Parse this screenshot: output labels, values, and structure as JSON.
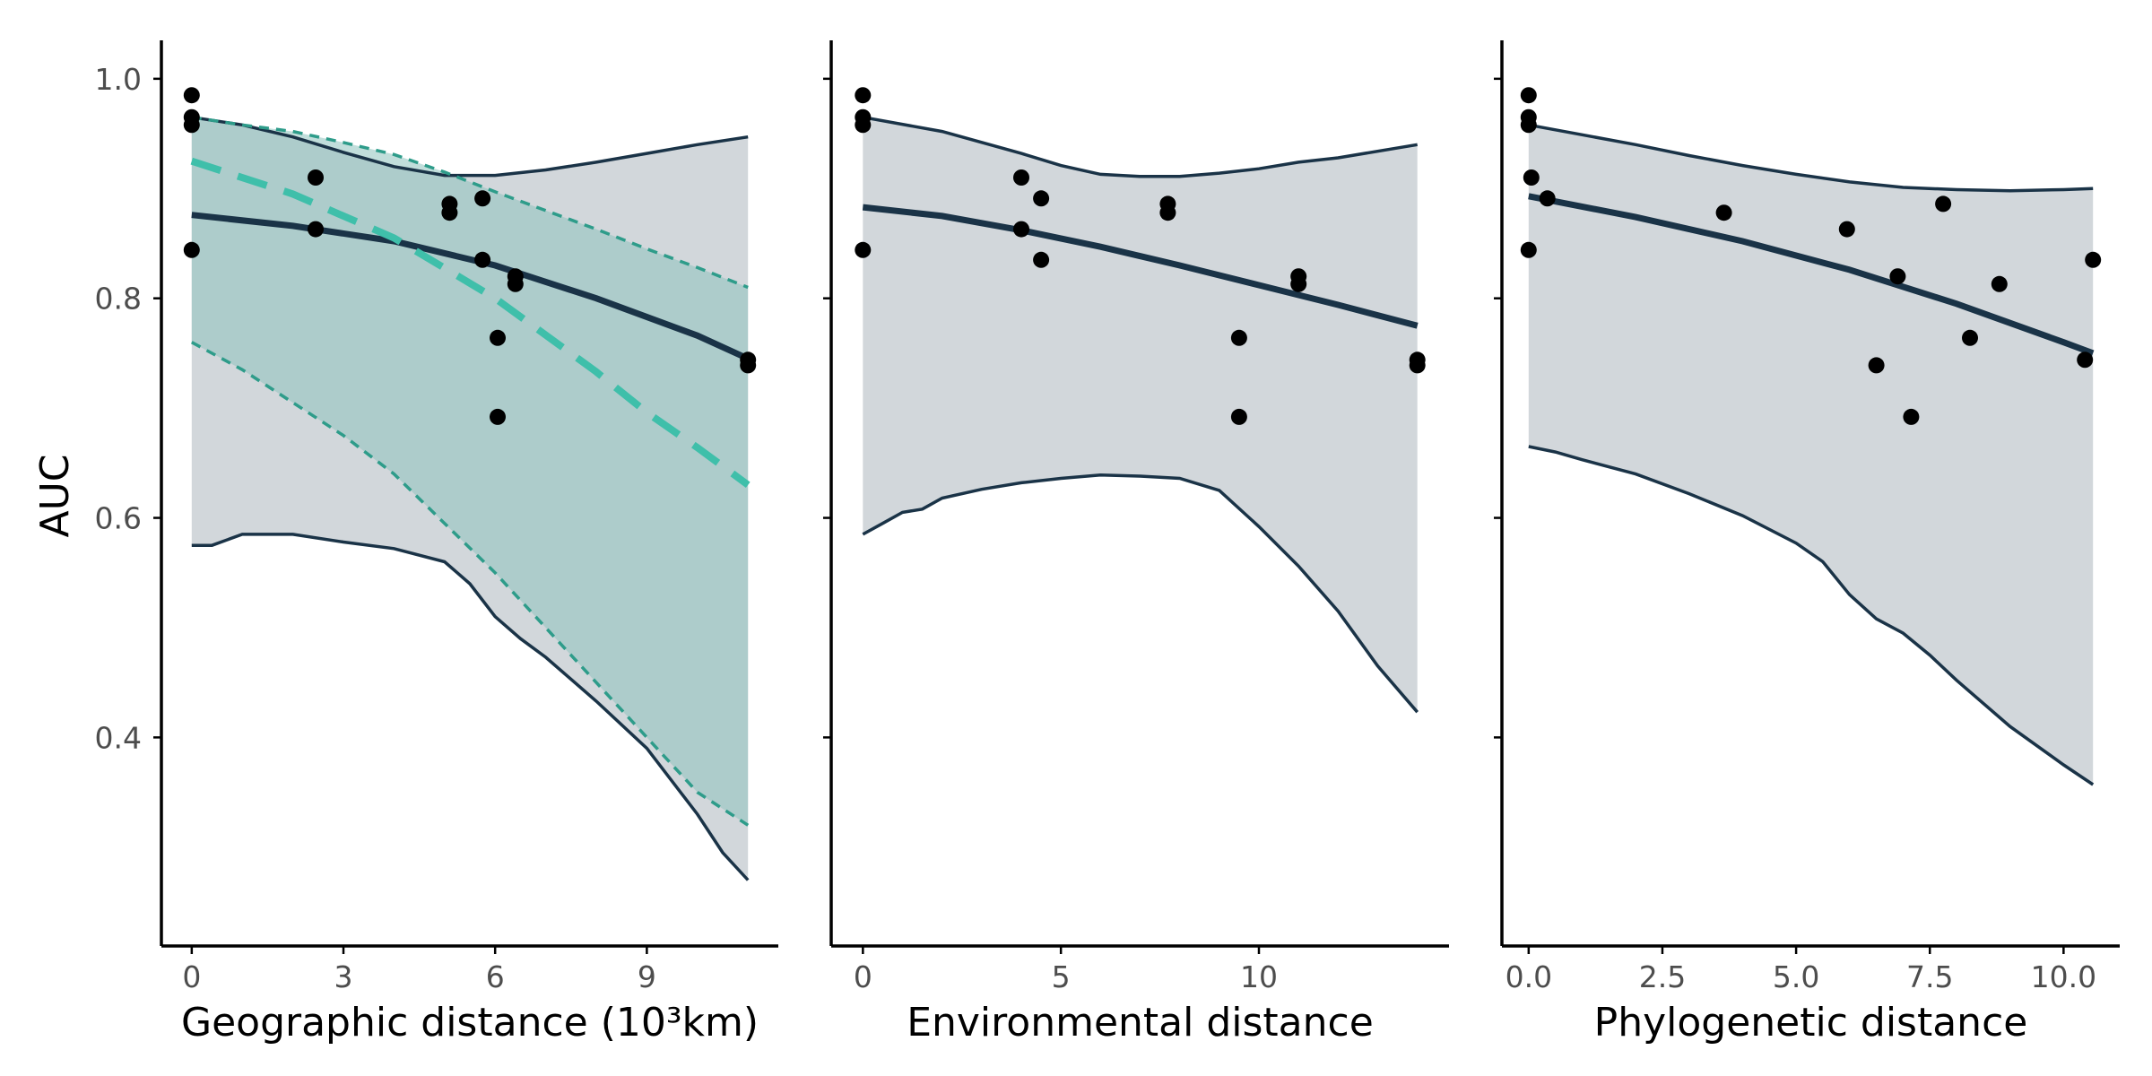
{
  "figure": {
    "ylabel": "AUC",
    "y_ticks": [
      "1.0",
      "0.8",
      "0.6",
      "0.4"
    ]
  },
  "colors": {
    "band_fill": "#d2d7db",
    "band_line": "#1a3347",
    "mean_line": "#1a3347",
    "teal": "#3fbfaa",
    "teal_dark": "#2e9c8a",
    "teal_fill": "#8ec3be",
    "point": "#000000"
  },
  "chart_data": [
    {
      "type": "line",
      "panel": "geographic",
      "xlabel": "Geographic distance (10³km)",
      "x_ticks": [
        "0",
        "3",
        "6",
        "9"
      ],
      "xlim": [
        -0.6,
        11.6
      ],
      "ylim": [
        0.21,
        1.035
      ],
      "grid": false,
      "series": [
        {
          "role": "model_mean",
          "style": "solid",
          "x": [
            0,
            2,
            4,
            6,
            8,
            10,
            11
          ],
          "y": [
            0.876,
            0.866,
            0.852,
            0.83,
            0.8,
            0.766,
            0.745
          ]
        },
        {
          "role": "interval_upper",
          "style": "solid",
          "x": [
            0,
            1,
            2,
            3,
            4,
            5,
            6,
            7,
            8,
            9,
            10,
            11
          ],
          "y": [
            0.965,
            0.958,
            0.947,
            0.933,
            0.92,
            0.912,
            0.912,
            0.917,
            0.924,
            0.932,
            0.94,
            0.947
          ]
        },
        {
          "role": "interval_lower",
          "style": "solid",
          "x": [
            0,
            0.4,
            1,
            2,
            3,
            4,
            5,
            5.5,
            6,
            6.5,
            7,
            8,
            9,
            10,
            10.5,
            11
          ],
          "y": [
            0.575,
            0.575,
            0.585,
            0.585,
            0.578,
            0.572,
            0.56,
            0.54,
            0.51,
            0.49,
            0.473,
            0.433,
            0.39,
            0.33,
            0.295,
            0.27
          ]
        },
        {
          "role": "reference_mean",
          "style": "dashed",
          "x": [
            0,
            2,
            4,
            6,
            8,
            9,
            10,
            11
          ],
          "y": [
            0.925,
            0.895,
            0.855,
            0.8,
            0.733,
            0.696,
            0.664,
            0.63
          ]
        },
        {
          "role": "reference_upper",
          "style": "dashed",
          "x": [
            0,
            1,
            2,
            3,
            4,
            5,
            6,
            7,
            8,
            9,
            10,
            11
          ],
          "y": [
            0.965,
            0.958,
            0.952,
            0.942,
            0.931,
            0.915,
            0.897,
            0.88,
            0.863,
            0.845,
            0.828,
            0.81
          ]
        },
        {
          "role": "reference_lower",
          "style": "dashed",
          "x": [
            0,
            1,
            2,
            3,
            4,
            5,
            6,
            7,
            8,
            9,
            10,
            11
          ],
          "y": [
            0.76,
            0.735,
            0.705,
            0.675,
            0.64,
            0.595,
            0.55,
            0.5,
            0.45,
            0.4,
            0.35,
            0.32
          ]
        }
      ],
      "points": {
        "x": [
          0,
          0,
          0,
          0,
          2.45,
          2.45,
          5.1,
          5.1,
          5.75,
          5.75,
          6.05,
          6.05,
          6.4,
          6.4,
          11,
          11
        ],
        "y": [
          0.985,
          0.965,
          0.958,
          0.844,
          0.91,
          0.863,
          0.886,
          0.878,
          0.891,
          0.835,
          0.764,
          0.692,
          0.82,
          0.813,
          0.744,
          0.739
        ]
      }
    },
    {
      "type": "line",
      "panel": "environmental",
      "xlabel": "Environmental distance",
      "x_ticks": [
        "0",
        "5",
        "10"
      ],
      "xlim": [
        -0.8,
        14.8
      ],
      "ylim": [
        0.21,
        1.035
      ],
      "grid": false,
      "series": [
        {
          "role": "model_mean",
          "style": "solid",
          "x": [
            0,
            2,
            4,
            6,
            8,
            10,
            12,
            14
          ],
          "y": [
            0.883,
            0.875,
            0.862,
            0.847,
            0.83,
            0.812,
            0.794,
            0.775
          ]
        },
        {
          "role": "interval_upper",
          "style": "solid",
          "x": [
            0,
            2,
            4,
            5,
            6,
            7,
            8,
            9,
            10,
            11,
            12,
            14
          ],
          "y": [
            0.965,
            0.952,
            0.932,
            0.921,
            0.913,
            0.911,
            0.911,
            0.914,
            0.918,
            0.924,
            0.928,
            0.94
          ]
        },
        {
          "role": "interval_lower",
          "style": "solid",
          "x": [
            0,
            0.5,
            1,
            1.5,
            2,
            3,
            4,
            5,
            6,
            7,
            8,
            9,
            10,
            11,
            12,
            13,
            14
          ],
          "y": [
            0.585,
            0.595,
            0.605,
            0.608,
            0.618,
            0.626,
            0.632,
            0.636,
            0.639,
            0.638,
            0.636,
            0.625,
            0.592,
            0.556,
            0.515,
            0.465,
            0.423
          ]
        }
      ],
      "points": {
        "x": [
          0,
          0,
          0,
          0,
          4,
          4,
          4.5,
          4.5,
          7.7,
          7.7,
          9.5,
          9.5,
          11,
          11,
          14,
          14
        ],
        "y": [
          0.985,
          0.965,
          0.958,
          0.844,
          0.91,
          0.863,
          0.891,
          0.835,
          0.886,
          0.878,
          0.764,
          0.692,
          0.82,
          0.813,
          0.744,
          0.739
        ]
      }
    },
    {
      "type": "line",
      "panel": "phylogenetic",
      "xlabel": "Phylogenetic distance",
      "x_ticks": [
        "0.0",
        "2.5",
        "5.0",
        "7.5",
        "10.0"
      ],
      "xlim": [
        -0.5,
        11.05
      ],
      "ylim": [
        0.21,
        1.035
      ],
      "grid": false,
      "series": [
        {
          "role": "model_mean",
          "style": "solid",
          "x": [
            0,
            2,
            4,
            6,
            8,
            10,
            10.55
          ],
          "y": [
            0.893,
            0.874,
            0.852,
            0.826,
            0.795,
            0.76,
            0.75
          ]
        },
        {
          "role": "interval_upper",
          "style": "solid",
          "x": [
            0,
            1,
            2,
            3,
            4,
            5,
            6,
            7,
            8,
            9,
            10,
            10.55
          ],
          "y": [
            0.958,
            0.949,
            0.94,
            0.93,
            0.921,
            0.913,
            0.906,
            0.901,
            0.899,
            0.898,
            0.899,
            0.9
          ]
        },
        {
          "role": "interval_lower",
          "style": "solid",
          "x": [
            0,
            0.5,
            1,
            2,
            3,
            4,
            5,
            5.5,
            6,
            6.5,
            7,
            7.5,
            8,
            9,
            10,
            10.55
          ],
          "y": [
            0.665,
            0.66,
            0.653,
            0.64,
            0.622,
            0.602,
            0.577,
            0.56,
            0.53,
            0.508,
            0.495,
            0.475,
            0.452,
            0.41,
            0.375,
            0.357
          ]
        }
      ],
      "points": {
        "x": [
          0,
          0,
          0,
          0,
          0.05,
          0.35,
          3.65,
          5.95,
          6.5,
          6.9,
          7.15,
          7.75,
          8.25,
          8.8,
          10.4,
          10.55
        ],
        "y": [
          0.985,
          0.965,
          0.958,
          0.844,
          0.91,
          0.891,
          0.878,
          0.863,
          0.739,
          0.82,
          0.692,
          0.886,
          0.764,
          0.813,
          0.744,
          0.835
        ]
      }
    }
  ]
}
